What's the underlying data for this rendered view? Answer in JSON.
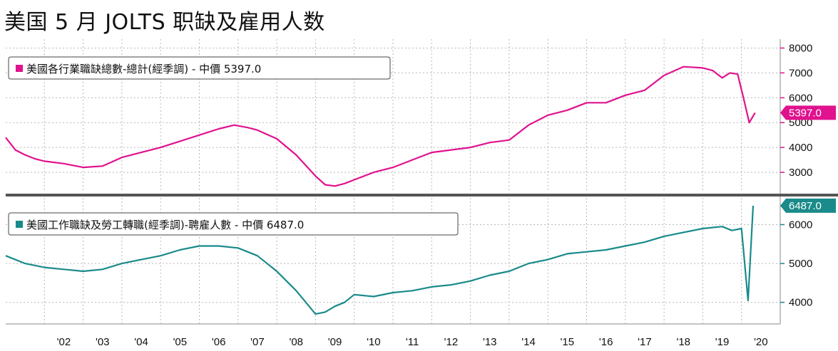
{
  "title": "美国 5 月 JOLTS 职缺及雇用人数",
  "chart_data": [
    {
      "type": "line",
      "panel": "top",
      "legend": "美國各行業職缺總數-總計(經季調) - 中價 5397.0",
      "last_value_label": "5397.0",
      "color": "#e0128e",
      "ylim": [
        2200,
        8300
      ],
      "yticks": [
        3000,
        4000,
        5000,
        6000,
        7000,
        8000
      ],
      "grid": true,
      "series": [
        {
          "x": [
            2001.0,
            2001.25,
            2001.5,
            2001.75,
            2002.0,
            2002.5,
            2003.0,
            2003.5,
            2004.0,
            2004.5,
            2005.0,
            2005.5,
            2006.0,
            2006.5,
            2006.9,
            2007.25,
            2007.5,
            2008.0,
            2008.5,
            2009.0,
            2009.25,
            2009.5,
            2009.75,
            2010.0,
            2010.5,
            2011.0,
            2011.5,
            2012.0,
            2012.5,
            2013.0,
            2013.5,
            2014.0,
            2014.5,
            2015.0,
            2015.5,
            2016.0,
            2016.5,
            2017.0,
            2017.5,
            2018.0,
            2018.5,
            2019.0,
            2019.25,
            2019.5,
            2019.7,
            2019.9,
            2020.05,
            2020.2,
            2020.35
          ],
          "y": [
            4400,
            3900,
            3700,
            3550,
            3450,
            3350,
            3200,
            3250,
            3600,
            3800,
            4000,
            4250,
            4500,
            4750,
            4900,
            4800,
            4700,
            4350,
            3700,
            2850,
            2500,
            2450,
            2550,
            2700,
            3000,
            3200,
            3500,
            3800,
            3900,
            4000,
            4200,
            4300,
            4900,
            5300,
            5500,
            5800,
            5800,
            6100,
            6300,
            6900,
            7250,
            7200,
            7100,
            6800,
            7000,
            6950,
            6000,
            5000,
            5397
          ]
        }
      ]
    },
    {
      "type": "line",
      "panel": "bottom",
      "legend": "美國工作職缺及勞工轉職(經季調)-聘雇人數 - 中價 6487.0",
      "last_value_label": "6487.0",
      "color": "#1a8a8a",
      "ylim": [
        3500,
        6650
      ],
      "yticks": [
        4000,
        5000,
        6000
      ],
      "grid": true,
      "series": [
        {
          "x": [
            2001.0,
            2001.5,
            2002.0,
            2002.5,
            2003.0,
            2003.5,
            2004.0,
            2004.5,
            2005.0,
            2005.5,
            2006.0,
            2006.5,
            2007.0,
            2007.5,
            2008.0,
            2008.5,
            2009.0,
            2009.25,
            2009.5,
            2009.75,
            2010.0,
            2010.5,
            2011.0,
            2011.5,
            2012.0,
            2012.5,
            2013.0,
            2013.5,
            2014.0,
            2014.5,
            2015.0,
            2015.5,
            2016.0,
            2016.5,
            2017.0,
            2017.5,
            2018.0,
            2018.5,
            2019.0,
            2019.5,
            2019.75,
            2020.0,
            2020.17,
            2020.3
          ],
          "y": [
            5200,
            5000,
            4900,
            4850,
            4800,
            4850,
            5000,
            5100,
            5200,
            5350,
            5450,
            5450,
            5400,
            5200,
            4800,
            4300,
            3700,
            3750,
            3900,
            4000,
            4200,
            4150,
            4250,
            4300,
            4400,
            4450,
            4550,
            4700,
            4800,
            5000,
            5100,
            5250,
            5300,
            5350,
            5450,
            5550,
            5700,
            5800,
            5900,
            5950,
            5850,
            5900,
            4050,
            6487
          ]
        }
      ]
    }
  ],
  "x_axis": {
    "labels": [
      "'02",
      "'03",
      "'04",
      "'05",
      "'06",
      "'07",
      "'08",
      "'09",
      "'10",
      "'11",
      "'12",
      "'13",
      "'14",
      "'15",
      "'16",
      "'17",
      "'18",
      "'19",
      "'20"
    ],
    "range": [
      2001,
      2021
    ]
  }
}
